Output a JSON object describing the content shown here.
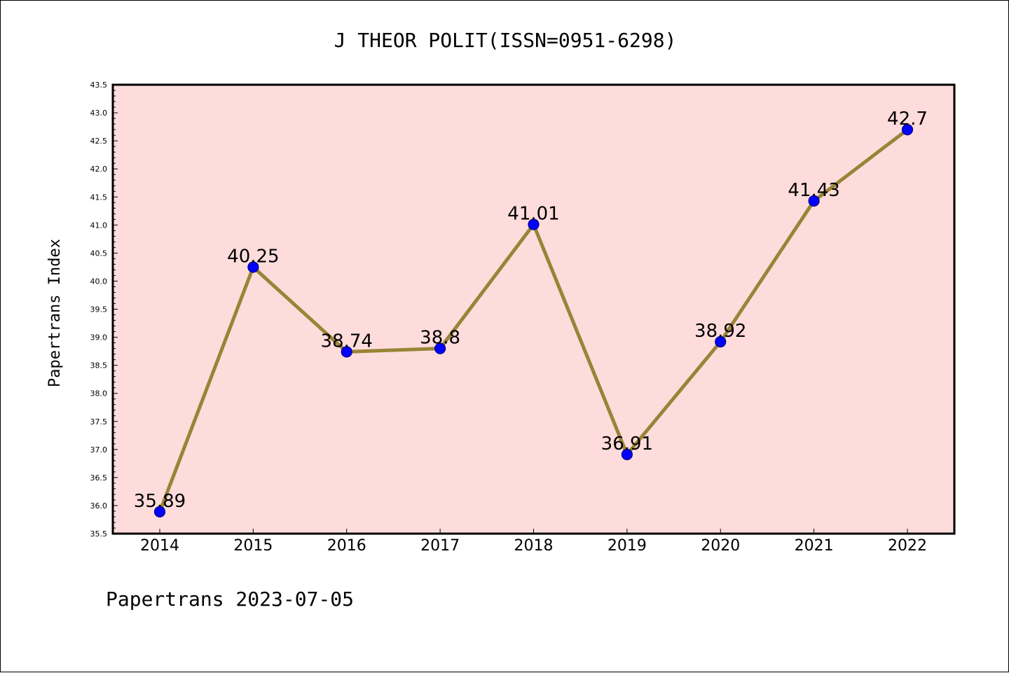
{
  "chart_data": {
    "type": "line",
    "title": "J THEOR POLIT(ISSN=0951-6298)",
    "xlabel": "",
    "ylabel": "Papertrans Index",
    "categories": [
      "2014",
      "2015",
      "2016",
      "2017",
      "2018",
      "2019",
      "2020",
      "2021",
      "2022"
    ],
    "series": [
      {
        "values": [
          35.89,
          40.25,
          38.74,
          38.8,
          41.01,
          36.91,
          38.92,
          41.43,
          42.7
        ],
        "data_labels": [
          "35.89",
          "40.25",
          "38.74",
          "38.8",
          "41.01",
          "36.91",
          "38.92",
          "41.43",
          "42.7"
        ]
      }
    ],
    "ylim": [
      35.5,
      43.5
    ],
    "yticks": [
      "35.5",
      "36.0",
      "36.5",
      "37.0",
      "37.5",
      "38.0",
      "38.5",
      "39.0",
      "39.5",
      "40.0",
      "40.5",
      "41.0",
      "41.5",
      "42.0",
      "42.5",
      "43.0",
      "43.5"
    ],
    "grid": false,
    "legend": "none",
    "colors": {
      "plot_background": "#ffdcdc",
      "line": "#998437",
      "marker_fill": "#0000ff",
      "marker_edge": "#000080",
      "axes": "#000000"
    }
  },
  "footer": {
    "note": "Papertrans 2023-07-05"
  }
}
